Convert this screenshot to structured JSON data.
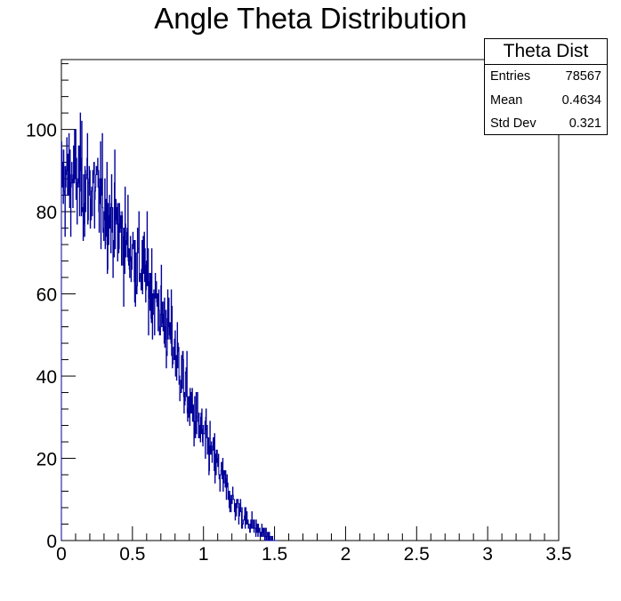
{
  "chart_data": {
    "type": "histogram",
    "title": "Angle Theta Distribution",
    "xlabel": "",
    "ylabel": "",
    "xlim": [
      0,
      3.5
    ],
    "ylim": [
      0,
      117
    ],
    "x_ticks": [
      "0",
      "0.5",
      "1",
      "1.5",
      "2",
      "2.5",
      "3",
      "3.5"
    ],
    "y_ticks": [
      "0",
      "20",
      "40",
      "60",
      "80",
      "100"
    ],
    "line_color": "#000099",
    "profile_x": [
      0.0,
      0.1,
      0.2,
      0.3,
      0.4,
      0.5,
      0.6,
      0.7,
      0.8,
      0.9,
      1.0,
      1.1,
      1.2,
      1.3,
      1.4,
      1.5
    ],
    "profile_y": [
      88,
      88,
      86,
      82,
      76,
      70,
      64,
      56,
      46,
      33,
      25,
      18,
      10,
      5,
      2,
      0
    ],
    "stats_box": {
      "title": "Theta Dist",
      "rows": [
        {
          "label": "Entries",
          "value": "78567"
        },
        {
          "label": "Mean",
          "value": "0.4634"
        },
        {
          "label": "Std Dev",
          "value": "0.321"
        }
      ]
    }
  }
}
